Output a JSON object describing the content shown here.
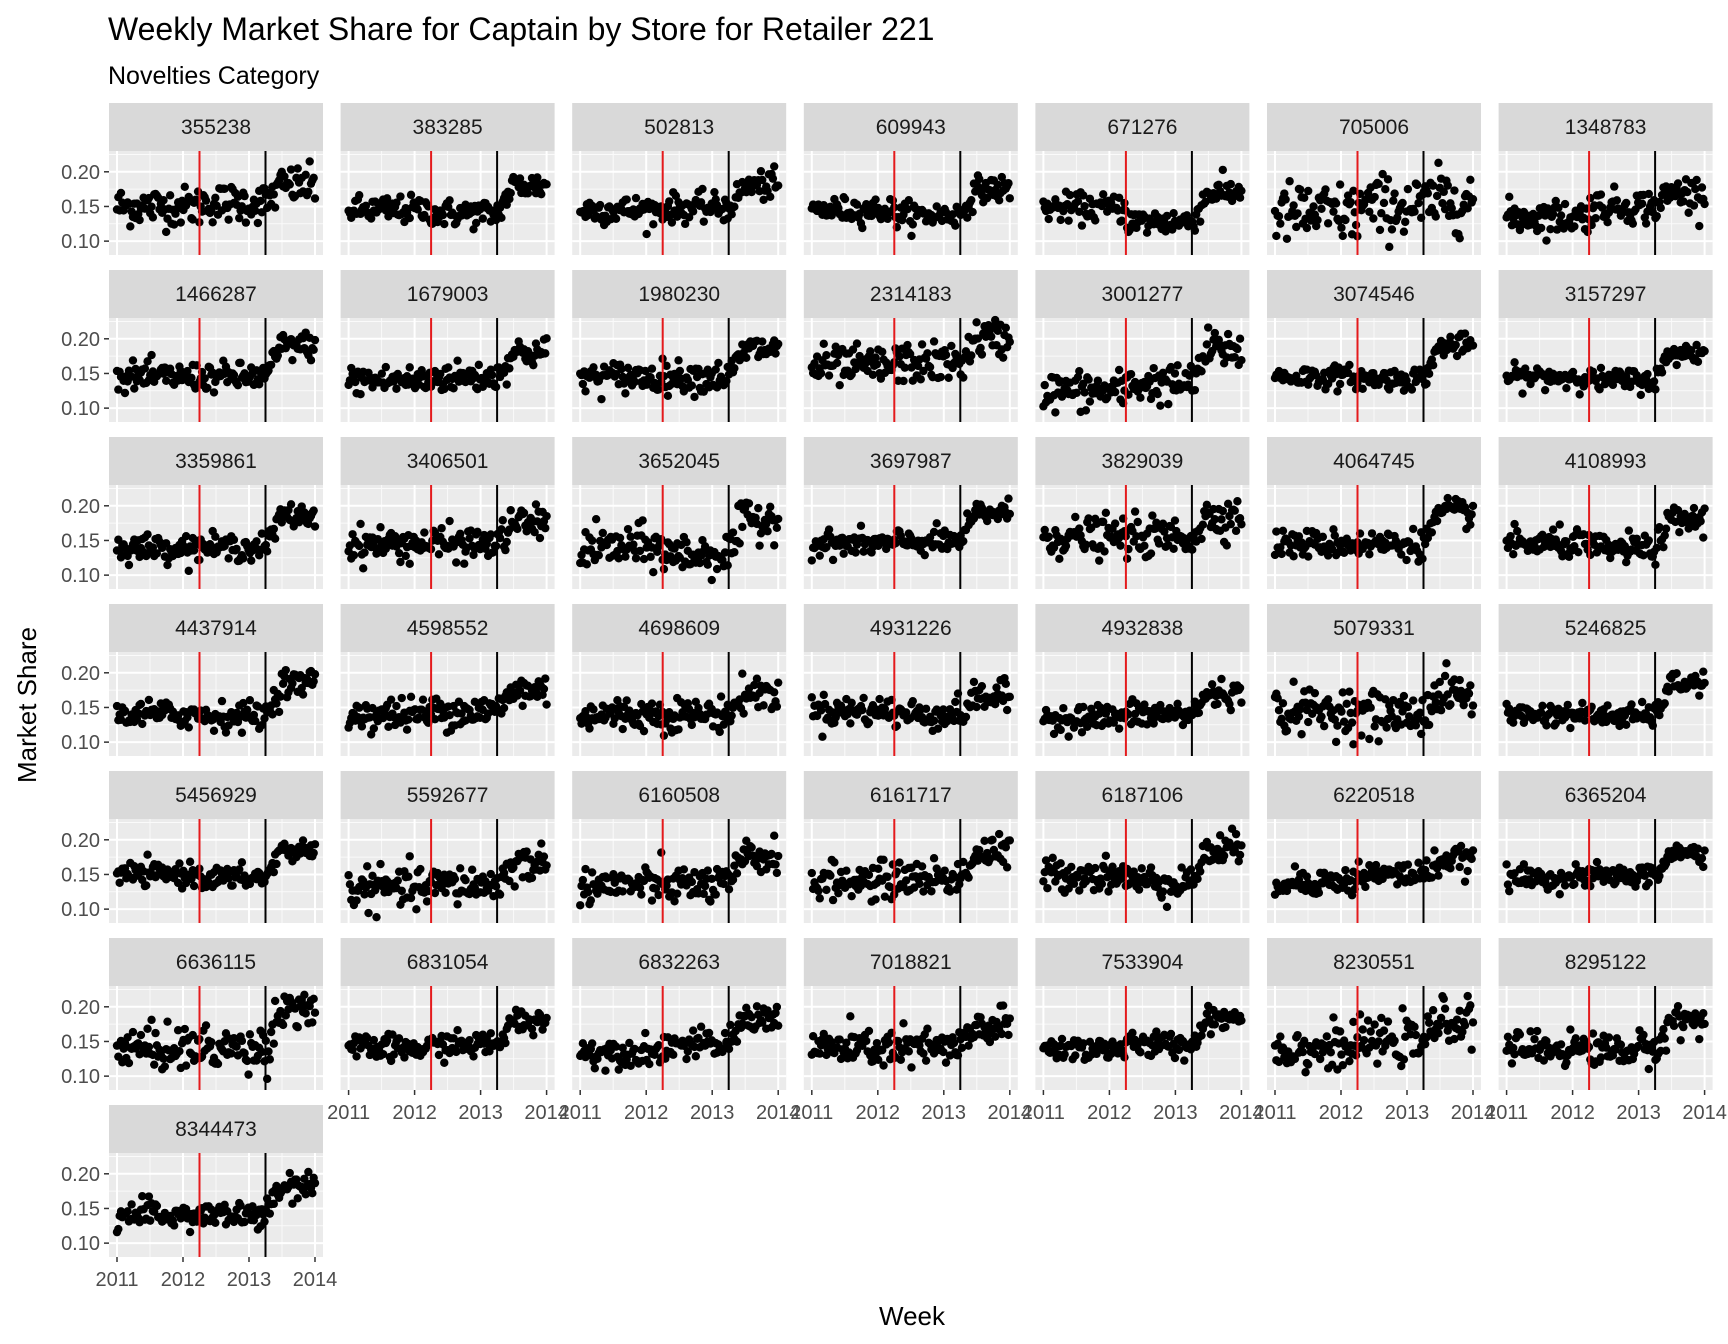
{
  "chart_data": {
    "type": "scatter",
    "title": "Weekly Market Share for Captain by Store for Retailer 221",
    "subtitle": "Novelties Category",
    "xlabel": "Week",
    "ylabel": "Market Share",
    "xlim": [
      2011,
      2014
    ],
    "ylim": [
      0.08,
      0.23
    ],
    "x_ticks": [
      "2011",
      "2012",
      "2013",
      "2014"
    ],
    "y_ticks": [
      "0.10",
      "0.15",
      "0.20"
    ],
    "grid": true,
    "reference_lines": [
      {
        "x": 2012.25,
        "color": "#e41a1c"
      },
      {
        "x": 2013.25,
        "color": "#000000"
      }
    ],
    "panels": [
      {
        "store": "355238",
        "pre": 0.15,
        "mid": 0.155,
        "post": 0.18,
        "noise": 0.014
      },
      {
        "store": "383285",
        "pre": 0.145,
        "mid": 0.14,
        "post": 0.18,
        "noise": 0.01
      },
      {
        "store": "502813",
        "pre": 0.145,
        "mid": 0.148,
        "post": 0.18,
        "noise": 0.01
      },
      {
        "store": "609943",
        "pre": 0.145,
        "mid": 0.138,
        "post": 0.175,
        "noise": 0.009
      },
      {
        "store": "671276",
        "pre": 0.148,
        "mid": 0.128,
        "post": 0.17,
        "noise": 0.01
      },
      {
        "store": "705006",
        "pre": 0.14,
        "mid": 0.15,
        "post": 0.16,
        "noise": 0.022
      },
      {
        "store": "1348783",
        "pre": 0.135,
        "mid": 0.15,
        "post": 0.17,
        "noise": 0.012
      },
      {
        "store": "1466287",
        "pre": 0.145,
        "mid": 0.145,
        "post": 0.19,
        "noise": 0.01
      },
      {
        "store": "1679003",
        "pre": 0.14,
        "mid": 0.145,
        "post": 0.18,
        "noise": 0.011
      },
      {
        "store": "1980230",
        "pre": 0.145,
        "mid": 0.145,
        "post": 0.185,
        "noise": 0.011
      },
      {
        "store": "2314183",
        "pre": 0.16,
        "mid": 0.165,
        "post": 0.2,
        "noise": 0.014
      },
      {
        "store": "3001277",
        "pre": 0.125,
        "mid": 0.135,
        "post": 0.185,
        "noise": 0.014
      },
      {
        "store": "3074546",
        "pre": 0.145,
        "mid": 0.142,
        "post": 0.19,
        "noise": 0.008
      },
      {
        "store": "3157297",
        "pre": 0.145,
        "mid": 0.14,
        "post": 0.18,
        "noise": 0.008
      },
      {
        "store": "3359861",
        "pre": 0.14,
        "mid": 0.14,
        "post": 0.185,
        "noise": 0.009
      },
      {
        "store": "3406501",
        "pre": 0.145,
        "mid": 0.145,
        "post": 0.175,
        "noise": 0.012
      },
      {
        "store": "3652045",
        "pre": 0.14,
        "mid": 0.13,
        "post": 0.18,
        "noise": 0.015
      },
      {
        "store": "3697987",
        "pre": 0.145,
        "mid": 0.148,
        "post": 0.19,
        "noise": 0.009
      },
      {
        "store": "3829039",
        "pre": 0.155,
        "mid": 0.155,
        "post": 0.185,
        "noise": 0.014
      },
      {
        "store": "4064745",
        "pre": 0.145,
        "mid": 0.145,
        "post": 0.19,
        "noise": 0.01
      },
      {
        "store": "4108993",
        "pre": 0.145,
        "mid": 0.138,
        "post": 0.18,
        "noise": 0.01
      },
      {
        "store": "4437914",
        "pre": 0.14,
        "mid": 0.138,
        "post": 0.185,
        "noise": 0.01
      },
      {
        "store": "4598552",
        "pre": 0.14,
        "mid": 0.145,
        "post": 0.175,
        "noise": 0.012
      },
      {
        "store": "4698609",
        "pre": 0.14,
        "mid": 0.14,
        "post": 0.17,
        "noise": 0.012
      },
      {
        "store": "4931226",
        "pre": 0.145,
        "mid": 0.14,
        "post": 0.165,
        "noise": 0.011
      },
      {
        "store": "4932838",
        "pre": 0.135,
        "mid": 0.14,
        "post": 0.17,
        "noise": 0.01
      },
      {
        "store": "5079331",
        "pre": 0.145,
        "mid": 0.14,
        "post": 0.17,
        "noise": 0.016
      },
      {
        "store": "5246825",
        "pre": 0.14,
        "mid": 0.138,
        "post": 0.185,
        "noise": 0.008
      },
      {
        "store": "5456929",
        "pre": 0.15,
        "mid": 0.145,
        "post": 0.185,
        "noise": 0.008
      },
      {
        "store": "5592677",
        "pre": 0.13,
        "mid": 0.135,
        "post": 0.165,
        "noise": 0.014
      },
      {
        "store": "6160508",
        "pre": 0.135,
        "mid": 0.135,
        "post": 0.175,
        "noise": 0.013
      },
      {
        "store": "6161717",
        "pre": 0.14,
        "mid": 0.145,
        "post": 0.18,
        "noise": 0.013
      },
      {
        "store": "6187106",
        "pre": 0.15,
        "mid": 0.14,
        "post": 0.185,
        "noise": 0.012
      },
      {
        "store": "6220518",
        "pre": 0.14,
        "mid": 0.15,
        "post": 0.17,
        "noise": 0.01
      },
      {
        "store": "6365204",
        "pre": 0.145,
        "mid": 0.148,
        "post": 0.18,
        "noise": 0.008
      },
      {
        "store": "6636115",
        "pre": 0.14,
        "mid": 0.14,
        "post": 0.2,
        "noise": 0.016
      },
      {
        "store": "6831054",
        "pre": 0.14,
        "mid": 0.145,
        "post": 0.18,
        "noise": 0.009
      },
      {
        "store": "6832263",
        "pre": 0.135,
        "mid": 0.145,
        "post": 0.185,
        "noise": 0.01
      },
      {
        "store": "7018821",
        "pre": 0.14,
        "mid": 0.14,
        "post": 0.17,
        "noise": 0.014
      },
      {
        "store": "7533904",
        "pre": 0.14,
        "mid": 0.145,
        "post": 0.185,
        "noise": 0.009
      },
      {
        "store": "8230551",
        "pre": 0.14,
        "mid": 0.15,
        "post": 0.18,
        "noise": 0.015
      },
      {
        "store": "8295122",
        "pre": 0.14,
        "mid": 0.138,
        "post": 0.18,
        "noise": 0.012
      },
      {
        "store": "8344473",
        "pre": 0.14,
        "mid": 0.14,
        "post": 0.18,
        "noise": 0.01
      }
    ]
  }
}
